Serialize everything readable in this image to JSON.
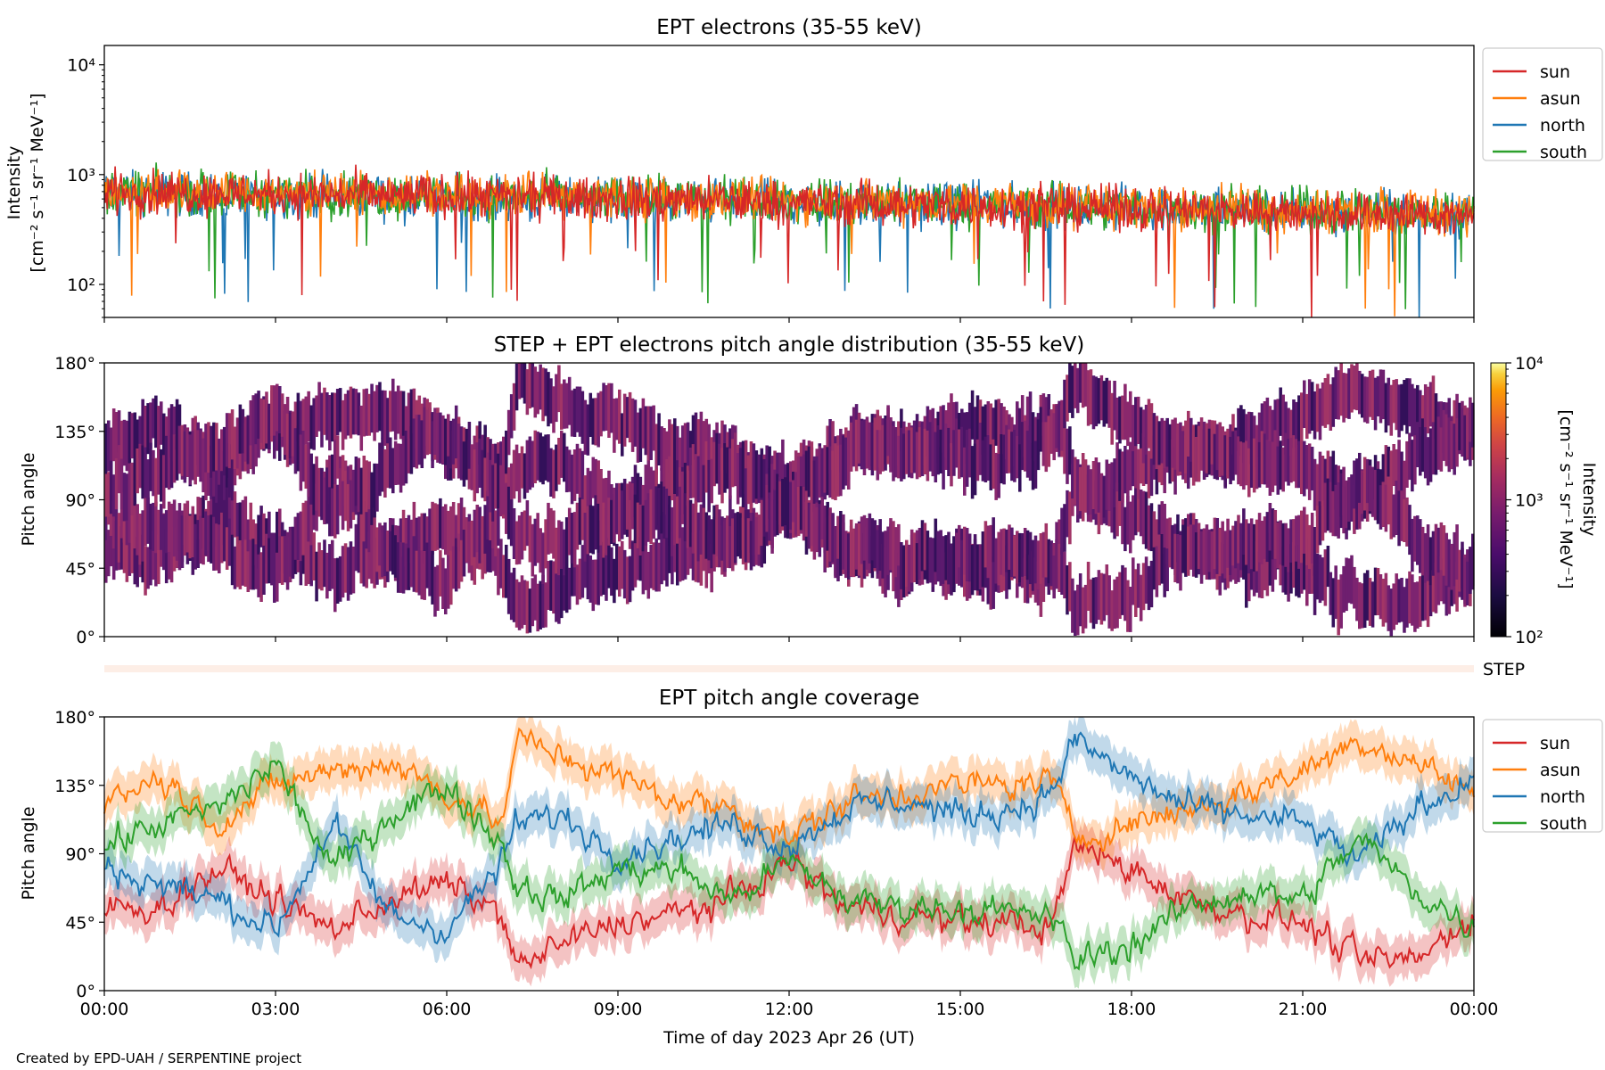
{
  "chart_data": [
    {
      "type": "line",
      "title": "EPT electrons (35-55 keV)",
      "ylabel_line1": "Intensity",
      "ylabel_line2": "[cm⁻² s⁻¹ sr⁻¹ MeV⁻¹]",
      "yscale": "log",
      "ylim": [
        50,
        15000
      ],
      "yticks": [
        "10²",
        "10³",
        "10⁴"
      ],
      "xlim_hours": [
        0,
        24
      ],
      "legend_position": "right, outside",
      "series": [
        {
          "name": "sun",
          "color": "#d62728",
          "typical_range": [
            300,
            1000
          ],
          "start": 700,
          "end": 420
        },
        {
          "name": "asun",
          "color": "#ff7f0e",
          "typical_range": [
            300,
            1200
          ],
          "start": 720,
          "end": 450
        },
        {
          "name": "north",
          "color": "#1f77b4",
          "typical_range": [
            300,
            1100
          ],
          "start": 680,
          "end": 430
        },
        {
          "name": "south",
          "color": "#2ca02c",
          "typical_range": [
            300,
            1200
          ],
          "start": 700,
          "end": 440
        }
      ]
    },
    {
      "type": "heatmap",
      "title": "STEP + EPT electrons pitch angle distribution (35-55 keV)",
      "ylabel": "Pitch angle",
      "ylim": [
        0,
        180
      ],
      "yticks": [
        "0°",
        "45°",
        "90°",
        "135°",
        "180°"
      ],
      "colorbar": {
        "label_line1": "Intensity",
        "label_line2": "[cm⁻² s⁻¹ sr⁻¹ MeV⁻¹]",
        "scale": "log",
        "range": [
          100,
          10000
        ],
        "ticks": [
          "10²",
          "10³",
          "10⁴"
        ],
        "colormap": "inferno"
      },
      "typical_intensity": 700
    },
    {
      "type": "table",
      "label": "STEP",
      "note": "STEP coverage strip"
    },
    {
      "type": "line",
      "title": "EPT pitch angle coverage",
      "ylabel": "Pitch angle",
      "ylim": [
        0,
        180
      ],
      "yticks": [
        "0°",
        "45°",
        "90°",
        "135°",
        "180°"
      ],
      "xlabel": "Time of day 2023 Apr 26 (UT)",
      "xticks": [
        "00:00",
        "03:00",
        "06:00",
        "09:00",
        "12:00",
        "15:00",
        "18:00",
        "21:00",
        "00:00"
      ],
      "band_halfwidth_deg": 13,
      "legend_position": "right, outside",
      "series": [
        {
          "name": "sun",
          "color": "#d62728",
          "x": [
            0,
            1,
            2,
            3,
            4,
            5,
            6,
            7,
            7.2,
            8,
            9,
            10,
            11,
            12,
            13,
            14,
            15,
            16,
            16.6,
            17,
            18,
            19,
            20,
            21,
            22,
            23,
            24
          ],
          "y": [
            55,
            55,
            80,
            60,
            40,
            60,
            70,
            50,
            15,
            30,
            45,
            50,
            60,
            85,
            55,
            50,
            45,
            45,
            40,
            95,
            80,
            60,
            50,
            45,
            20,
            20,
            50
          ]
        },
        {
          "name": "asun",
          "color": "#ff7f0e",
          "x": [
            0,
            1,
            2,
            3,
            4,
            5,
            6,
            7,
            7.2,
            8,
            9,
            10,
            11,
            12,
            13,
            14,
            15,
            16,
            16.6,
            17,
            18,
            19,
            20,
            21,
            22,
            23,
            24
          ],
          "y": [
            125,
            140,
            110,
            135,
            145,
            150,
            130,
            110,
            165,
            155,
            140,
            125,
            120,
            100,
            125,
            130,
            135,
            135,
            140,
            100,
            110,
            120,
            130,
            145,
            165,
            150,
            130
          ]
        },
        {
          "name": "north",
          "color": "#1f77b4",
          "x": [
            0,
            1,
            2,
            3,
            4,
            5,
            6,
            7,
            7.2,
            8,
            9,
            10,
            11,
            12,
            13,
            14,
            15,
            16,
            16.6,
            17,
            18,
            19,
            20,
            21,
            22,
            23,
            24
          ],
          "y": [
            80,
            70,
            60,
            40,
            110,
            50,
            40,
            85,
            110,
            115,
            90,
            100,
            110,
            95,
            120,
            125,
            115,
            120,
            130,
            165,
            140,
            120,
            115,
            110,
            85,
            120,
            140
          ]
        },
        {
          "name": "south",
          "color": "#2ca02c",
          "x": [
            0,
            1,
            2,
            3,
            4,
            5,
            6,
            7,
            7.2,
            8,
            9,
            10,
            11,
            12,
            13,
            14,
            15,
            16,
            16.6,
            17,
            18,
            19,
            20,
            21,
            22,
            23,
            24
          ],
          "y": [
            95,
            110,
            120,
            150,
            80,
            115,
            135,
            95,
            70,
            60,
            80,
            80,
            60,
            85,
            60,
            55,
            55,
            50,
            50,
            20,
            30,
            55,
            65,
            60,
            100,
            65,
            40
          ]
        }
      ]
    }
  ],
  "credit": "Created by EPD-UAH / SERPENTINE project"
}
